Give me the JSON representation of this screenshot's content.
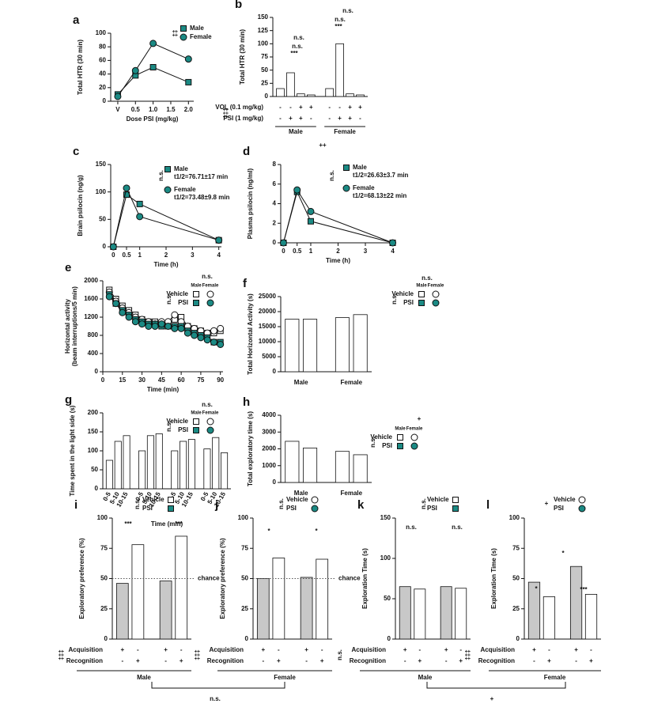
{
  "chart_data": [
    {
      "panel": "a",
      "type": "line",
      "ylabel": "Total HTR (30 min)",
      "xlabel": "Dose PSI (mg/kg)",
      "x": [
        0,
        0.5,
        1,
        2
      ],
      "xlim": [
        -0.2,
        2.15
      ],
      "xticks": [
        {
          "value": 0,
          "label": "V"
        },
        0.5,
        {
          "value": 1,
          "label": "1.0"
        },
        1.5,
        {
          "value": 2,
          "label": "2.0"
        }
      ],
      "ylim": [
        0,
        100
      ],
      "yticks": [
        0,
        20,
        40,
        60,
        80,
        100
      ],
      "series": [
        {
          "name": "Male",
          "marker": "square",
          "color": "#1b8a84",
          "values": [
            10,
            38,
            50,
            28
          ]
        },
        {
          "name": "Female",
          "marker": "circle",
          "color": "#1b8a84",
          "values": [
            7,
            45,
            85,
            62
          ]
        }
      ],
      "annotations": [
        "‡‡"
      ]
    },
    {
      "panel": "b",
      "type": "bar",
      "ylabel": "Total HTR (30 min)",
      "ylim": [
        0,
        150
      ],
      "yticks": [
        0,
        25,
        50,
        75,
        100,
        125,
        150
      ],
      "color": "#ffffff",
      "groups": [
        {
          "label": "Male",
          "values": [
            15,
            45,
            5,
            3
          ]
        },
        {
          "label": "Female",
          "values": [
            15,
            100,
            5,
            3
          ]
        }
      ],
      "rows": [
        {
          "label": "VOL (0.1 mg/kg)",
          "signs": [
            [
              "-",
              "-",
              "+",
              "+"
            ],
            [
              "-",
              "-",
              "+",
              "+"
            ]
          ]
        },
        {
          "label": "PSI (1 mg/kg)",
          "signs": [
            [
              "-",
              "+",
              "+",
              "-"
            ],
            [
              "-",
              "+",
              "+",
              "-"
            ]
          ]
        }
      ],
      "annotations": [
        "***",
        "n.s.",
        "n.s.",
        "***",
        "n.s.",
        "n.s.",
        "++",
        "‡‡‡"
      ]
    },
    {
      "panel": "c",
      "type": "line",
      "ylabel": "Brain psilocin (ng/g)",
      "xlabel": "Time (h)",
      "x": [
        0,
        0.5,
        1,
        4
      ],
      "xlim": [
        -0.1,
        4.1
      ],
      "xticks": [
        0,
        0.5,
        1,
        2,
        3,
        4
      ],
      "ylim": [
        0,
        150
      ],
      "yticks": [
        0,
        50,
        100,
        150
      ],
      "series": [
        {
          "name": "Male",
          "note": "t1/2=76.71±17 min",
          "marker": "square",
          "color": "#1b8a84",
          "values": [
            0,
            95,
            78,
            12
          ]
        },
        {
          "name": "Female",
          "note": "t1/2=73.48±9.8 min",
          "marker": "circle",
          "color": "#1b8a84",
          "values": [
            0,
            107,
            55,
            12
          ]
        }
      ],
      "annotations": [
        "n.s."
      ]
    },
    {
      "panel": "d",
      "type": "line",
      "ylabel": "Plasma psilocin (ng/ml)",
      "xlabel": "Time (h)",
      "x": [
        0,
        0.5,
        1,
        4
      ],
      "xlim": [
        -0.1,
        4.1
      ],
      "xticks": [
        0,
        0.5,
        1,
        2,
        3,
        4
      ],
      "ylim": [
        0,
        8
      ],
      "yticks": [
        0,
        2,
        4,
        6,
        8
      ],
      "series": [
        {
          "name": "Male",
          "note": "t1/2=26.63±3.7 min",
          "marker": "square",
          "color": "#1b8a84",
          "values": [
            0,
            5.2,
            2.2,
            0
          ]
        },
        {
          "name": "Female",
          "note": "t1/2=68.13±22 min",
          "marker": "circle",
          "color": "#1b8a84",
          "values": [
            0,
            5.4,
            3.2,
            0
          ]
        }
      ],
      "annotations": [
        "n.s."
      ]
    },
    {
      "panel": "e",
      "type": "line",
      "ylabel": "Horizontal activity",
      "ylabel2": "(beam interruptions/5 min)",
      "xlabel": "Time (min)",
      "x": [
        5,
        10,
        15,
        20,
        25,
        30,
        35,
        40,
        45,
        50,
        55,
        60,
        65,
        70,
        75,
        80,
        85,
        90
      ],
      "xlim": [
        0,
        92
      ],
      "xticks": [
        0,
        15,
        30,
        45,
        60,
        75,
        90
      ],
      "ylim": [
        0,
        2000
      ],
      "yticks": [
        0,
        400,
        800,
        1200,
        1600,
        2000
      ],
      "series": [
        {
          "marker": "square",
          "color": "#ffffff",
          "values": [
            1800,
            1600,
            1450,
            1350,
            1250,
            1150,
            1100,
            1100,
            1050,
            1050,
            1150,
            1200,
            1000,
            950,
            900,
            850,
            850,
            900
          ]
        },
        {
          "marker": "circle",
          "color": "#ffffff",
          "values": [
            1750,
            1550,
            1400,
            1300,
            1200,
            1150,
            1100,
            1050,
            1100,
            1100,
            1250,
            1100,
            1000,
            950,
            900,
            850,
            900,
            950
          ]
        },
        {
          "marker": "square",
          "color": "#1b8a84",
          "values": [
            1700,
            1500,
            1350,
            1250,
            1150,
            1100,
            1050,
            1050,
            1000,
            1000,
            1000,
            1000,
            900,
            850,
            800,
            750,
            650,
            650
          ]
        },
        {
          "marker": "circle",
          "color": "#1b8a84",
          "values": [
            1650,
            1500,
            1300,
            1200,
            1100,
            1050,
            1000,
            1000,
            1050,
            1000,
            950,
            950,
            850,
            800,
            750,
            700,
            650,
            600
          ]
        }
      ],
      "legend_grid": {
        "columns": [
          "Male",
          "Female"
        ],
        "rows": [
          "Vehicle",
          "PSI"
        ],
        "row_colors": [
          "#ffffff",
          "#1b8a84"
        ],
        "column_markers": [
          "square",
          "circle"
        ]
      },
      "annotations": [
        "n.s.",
        "n.s."
      ]
    },
    {
      "panel": "f",
      "type": "bar",
      "ylabel": "Total Horizontal Activity (s)",
      "ylim": [
        0,
        25000
      ],
      "yticks": [
        0,
        5000,
        10000,
        15000,
        20000,
        25000
      ],
      "color": "#ffffff",
      "groups": [
        {
          "label": "Male",
          "values": [
            17500,
            17500
          ]
        },
        {
          "label": "Female",
          "values": [
            18000,
            19000
          ]
        }
      ],
      "legend_grid": {
        "columns": [
          "Male",
          "Female"
        ],
        "rows": [
          "Vehicle",
          "PSI"
        ],
        "row_colors": [
          "#ffffff",
          "#1b8a84"
        ],
        "column_markers": [
          "square",
          "circle"
        ]
      },
      "annotations": [
        "n.s.",
        "n.s."
      ]
    },
    {
      "panel": "g",
      "type": "bar",
      "ylabel": "Time spent in the light side (s)",
      "xlabel": "Time (min)",
      "ylim": [
        0,
        200
      ],
      "yticks": [
        0,
        50,
        100,
        150,
        200
      ],
      "color": "#ffffff",
      "categories": [
        "0-5",
        "5-10",
        "10-15"
      ],
      "groups": [
        {
          "values": [
            75,
            125,
            140
          ]
        },
        {
          "values": [
            100,
            140,
            145
          ]
        },
        {
          "values": [
            100,
            125,
            130
          ]
        },
        {
          "values": [
            105,
            135,
            95
          ]
        }
      ],
      "legend_grid": {
        "columns": [
          "Male",
          "Female"
        ],
        "rows": [
          "Vehicle",
          "PSI"
        ],
        "row_colors": [
          "#ffffff",
          "#1b8a84"
        ],
        "column_markers": [
          "square",
          "circle"
        ]
      },
      "annotations": [
        "n.s.",
        "n.s."
      ]
    },
    {
      "panel": "h",
      "type": "bar",
      "ylabel": "Total exploratory time (s)",
      "ylim": [
        0,
        4000
      ],
      "yticks": [
        0,
        1000,
        2000,
        3000,
        4000
      ],
      "color": "#ffffff",
      "groups": [
        {
          "label": "Male",
          "values": [
            2450,
            2050
          ]
        },
        {
          "label": "Female",
          "values": [
            1850,
            1650
          ]
        }
      ],
      "legend_grid": {
        "columns": [
          "Male",
          "Female"
        ],
        "rows": [
          "Vehicle",
          "PSI"
        ],
        "row_colors": [
          "#ffffff",
          "#1b8a84"
        ],
        "column_markers": [
          "square",
          "circle"
        ]
      },
      "annotations": [
        "n.s.",
        "+"
      ]
    },
    {
      "panel": "i",
      "type": "bar",
      "ylabel": "Exploratory preference (%)",
      "ylim": [
        0,
        100
      ],
      "yticks": [
        0,
        25,
        50,
        75,
        100
      ],
      "colors": [
        "#c8c8c8",
        "#ffffff"
      ],
      "groups": [
        {
          "values": [
            46,
            78
          ]
        },
        {
          "values": [
            48,
            85
          ]
        }
      ],
      "rows": [
        {
          "label": "Acquisition",
          "signs": [
            [
              "+",
              "-"
            ],
            [
              "+",
              "-"
            ]
          ]
        },
        {
          "label": "Recognition",
          "signs": [
            [
              "-",
              "+"
            ],
            [
              "-",
              "+"
            ]
          ]
        }
      ],
      "group_label": "Male",
      "chance": {
        "value": 50,
        "label": "chance"
      },
      "legend": [
        {
          "label": "Vehicle",
          "marker": "square",
          "color": "#ffffff"
        },
        {
          "label": "PSI",
          "marker": "square",
          "color": "#1b8a84"
        }
      ],
      "annotations": [
        "n.s.",
        "***",
        "***",
        "‡‡‡"
      ]
    },
    {
      "panel": "j",
      "type": "bar",
      "ylabel": "Exploratory preference (%)",
      "ylim": [
        0,
        100
      ],
      "yticks": [
        0,
        25,
        50,
        75,
        100
      ],
      "colors": [
        "#c8c8c8",
        "#ffffff"
      ],
      "groups": [
        {
          "values": [
            50,
            67
          ]
        },
        {
          "values": [
            51,
            66
          ]
        }
      ],
      "rows": [
        {
          "label": "Acquisition",
          "signs": [
            [
              "+",
              "-"
            ],
            [
              "+",
              "-"
            ]
          ]
        },
        {
          "label": "Recognition",
          "signs": [
            [
              "-",
              "+"
            ],
            [
              "-",
              "+"
            ]
          ]
        }
      ],
      "group_label": "Female",
      "chance": {
        "value": 50,
        "label": "chance"
      },
      "legend": [
        {
          "label": "Vehicle",
          "marker": "circle",
          "color": "#ffffff"
        },
        {
          "label": "PSI",
          "marker": "circle",
          "color": "#1b8a84"
        }
      ],
      "annotations": [
        "n.s.",
        "*",
        "*",
        "‡‡‡"
      ]
    },
    {
      "panel": "k",
      "type": "bar",
      "ylabel": "Exploration Time (s)",
      "ylim": [
        0,
        150
      ],
      "yticks": [
        0,
        50,
        100,
        150
      ],
      "colors": [
        "#c8c8c8",
        "#ffffff"
      ],
      "groups": [
        {
          "values": [
            65,
            62
          ]
        },
        {
          "values": [
            65,
            63
          ]
        }
      ],
      "rows": [
        {
          "label": "Acquisition",
          "signs": [
            [
              "+",
              "-"
            ],
            [
              "+",
              "-"
            ]
          ]
        },
        {
          "label": "Recognition",
          "signs": [
            [
              "-",
              "+"
            ],
            [
              "-",
              "+"
            ]
          ]
        }
      ],
      "group_label": "Male",
      "legend": [
        {
          "label": "Vehicle",
          "marker": "square",
          "color": "#ffffff"
        },
        {
          "label": "PSI",
          "marker": "square",
          "color": "#1b8a84"
        }
      ],
      "annotations": [
        "n.s.",
        "n.s.",
        "n.s.",
        "n.s."
      ]
    },
    {
      "panel": "l",
      "type": "bar",
      "ylabel": "Exploration Time (s)",
      "ylim": [
        0,
        100
      ],
      "yticks": [
        0,
        25,
        50,
        75,
        100
      ],
      "colors": [
        "#c8c8c8",
        "#ffffff"
      ],
      "groups": [
        {
          "values": [
            47,
            35
          ]
        },
        {
          "values": [
            60,
            37
          ]
        }
      ],
      "rows": [
        {
          "label": "Acquisition",
          "signs": [
            [
              "+",
              "-"
            ],
            [
              "+",
              "-"
            ]
          ]
        },
        {
          "label": "Recognition",
          "signs": [
            [
              "-",
              "+"
            ],
            [
              "-",
              "+"
            ]
          ]
        }
      ],
      "group_label": "Female",
      "legend": [
        {
          "label": "Vehicle",
          "marker": "circle",
          "color": "#ffffff"
        },
        {
          "label": "PSI",
          "marker": "circle",
          "color": "#1b8a84"
        }
      ],
      "annotations": [
        "+",
        "*",
        "*",
        "***",
        "‡‡‡"
      ]
    }
  ],
  "figure_notes": [
    "n.s.",
    "+"
  ]
}
